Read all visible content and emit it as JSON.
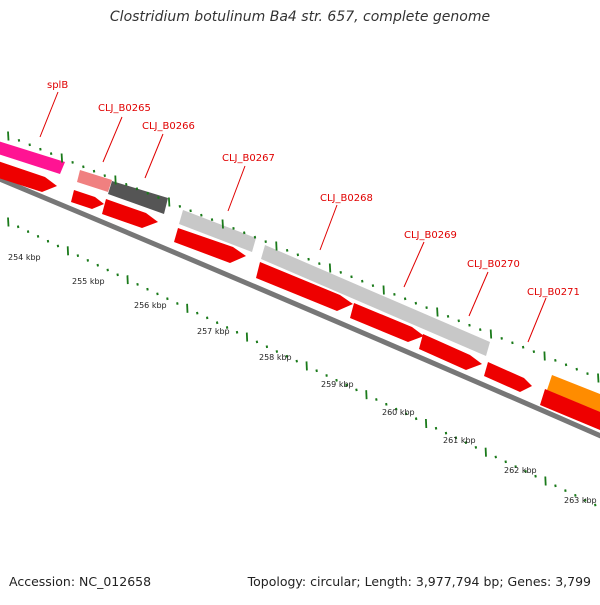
{
  "title": "Clostridium botulinum Ba4 str. 657, complete genome",
  "footer": {
    "accession": "Accession: NC_012658",
    "summary": "Topology: circular; Length: 3,977,794 bp; Genes: 3,799"
  },
  "colors": {
    "label": "#e00000",
    "tick": "#1a7a1a",
    "backbone": "#777777",
    "cds": "#ee0000",
    "splB": "#ff1493",
    "CLJ_B0265": "#f08080",
    "CLJ_B0266": "#555555",
    "CLJ_B0267": "#c8c8c8",
    "CLJ_B0268": "#c8c8c8",
    "CLJ_B0269": "#c8c8c8",
    "CLJ_B0270": "#c8c8c8",
    "CLJ_B0271": "#ff8c00"
  },
  "scale_labels": [
    "254 kbp",
    "255 kbp",
    "256 kbp",
    "257 kbp",
    "258 kbp",
    "259 kbp",
    "260 kbp",
    "261 kbp",
    "262 kbp",
    "263 kbp"
  ],
  "gene_labels": [
    "splB",
    "CLJ_B0265",
    "CLJ_B0266",
    "CLJ_B0267",
    "CLJ_B0268",
    "CLJ_B0269",
    "CLJ_B0270",
    "CLJ_B0271"
  ]
}
